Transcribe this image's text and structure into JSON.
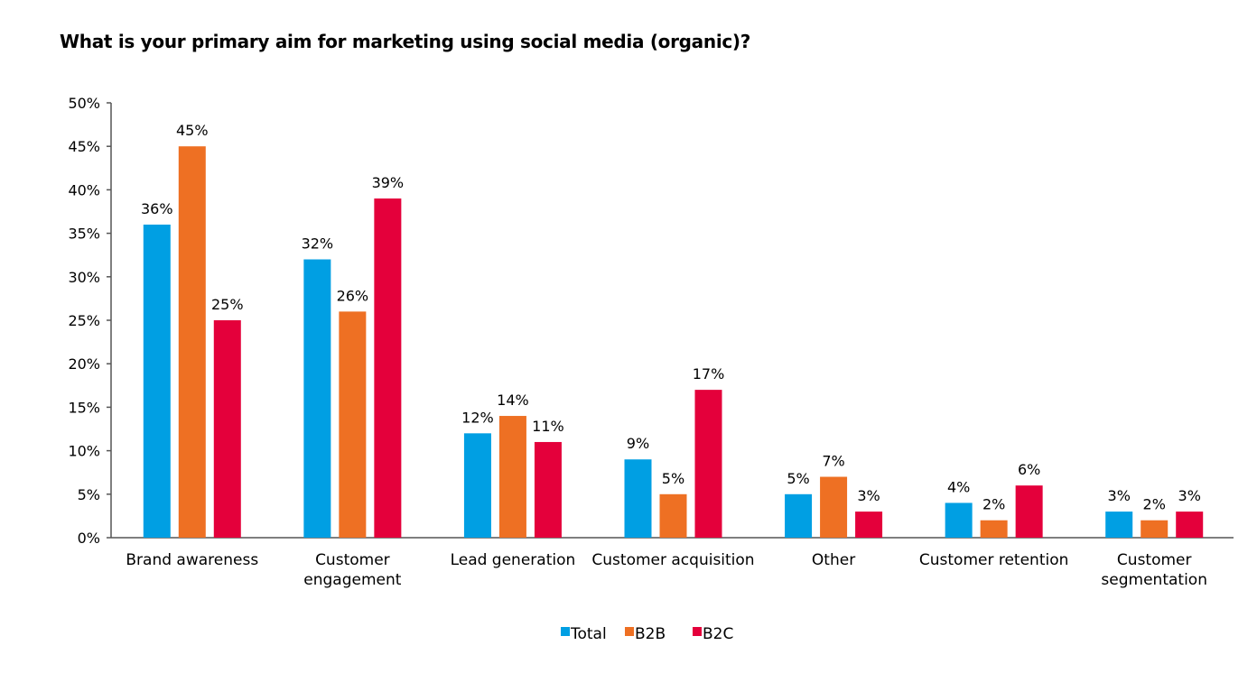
{
  "chart_data": {
    "type": "bar",
    "title": "What is your primary aim for marketing using social media (organic)?",
    "xlabel": "",
    "ylabel": "",
    "ylim": [
      0,
      50
    ],
    "yticks": [
      "0%",
      "5%",
      "10%",
      "15%",
      "20%",
      "25%",
      "30%",
      "35%",
      "40%",
      "45%",
      "50%"
    ],
    "categories": [
      [
        "Brand awareness"
      ],
      [
        "Customer",
        "engagement"
      ],
      [
        "Lead generation"
      ],
      [
        "Customer acquisition"
      ],
      [
        "Other"
      ],
      [
        "Customer retention"
      ],
      [
        "Customer",
        "segmentation"
      ]
    ],
    "series": [
      {
        "name": "Total",
        "color": "#009fe3",
        "values": [
          36,
          32,
          12,
          9,
          5,
          4,
          3
        ]
      },
      {
        "name": "B2B",
        "color": "#ee7023",
        "values": [
          45,
          26,
          14,
          5,
          7,
          2,
          2
        ]
      },
      {
        "name": "B2C",
        "color": "#e4003b",
        "values": [
          25,
          39,
          11,
          17,
          3,
          6,
          3
        ]
      }
    ],
    "value_suffix": "%",
    "legend_position": "bottom-center",
    "grid": false
  }
}
